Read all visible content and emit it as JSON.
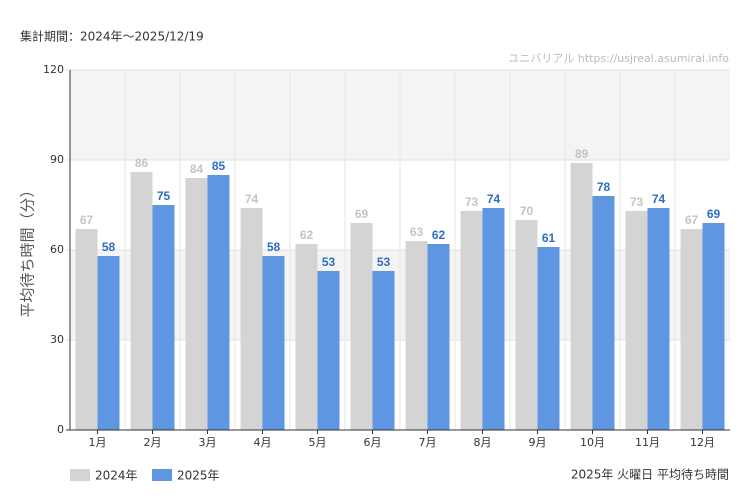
{
  "chart_data": {
    "type": "bar",
    "subtitle": "集計期間：2024年～2025/12/19",
    "watermark": "ユニバリアル  https://usjreal.asumirai.info",
    "ylabel": "平均待ち時間（分）",
    "caption": "2025年 火曜日 平均待ち時間",
    "categories": [
      "1月",
      "2月",
      "3月",
      "4月",
      "5月",
      "6月",
      "7月",
      "8月",
      "9月",
      "10月",
      "11月",
      "12月"
    ],
    "series": [
      {
        "name": "2024年",
        "color": "#d4d4d4",
        "label_color": "#c4c4c4",
        "values": [
          67,
          86,
          84,
          74,
          62,
          69,
          63,
          73,
          70,
          89,
          73,
          67
        ]
      },
      {
        "name": "2025年",
        "color": "#5f96e2",
        "label_color": "#2f6cc4",
        "values": [
          58,
          75,
          85,
          58,
          53,
          53,
          62,
          74,
          61,
          78,
          74,
          69
        ]
      }
    ],
    "ylim": [
      0,
      120
    ],
    "yticks": [
      0,
      30,
      60,
      90,
      120
    ],
    "grid": true,
    "legend": "bottom-left"
  }
}
